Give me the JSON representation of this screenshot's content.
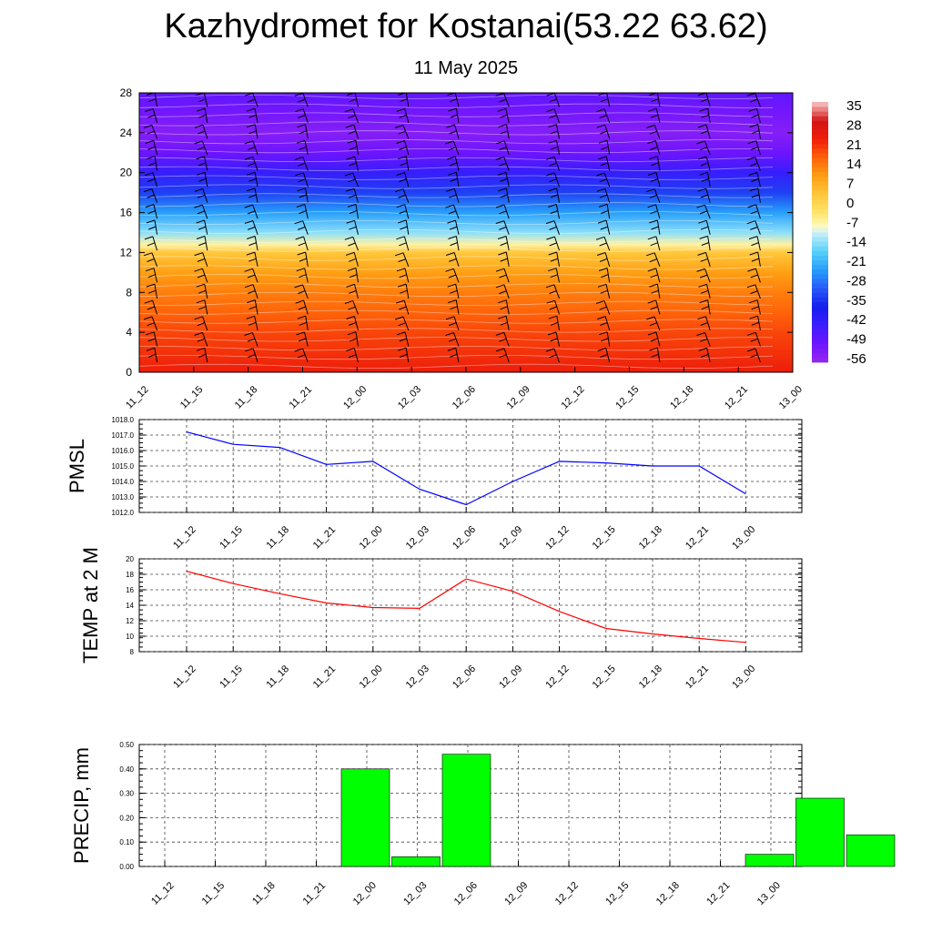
{
  "title": "Kazhydromet for Kostanai(53.22 63.62)",
  "subtitle": "11 May 2025",
  "time_labels": [
    "11_12",
    "11_15",
    "11_18",
    "11_21",
    "12_00",
    "12_03",
    "12_06",
    "12_09",
    "12_12",
    "12_15",
    "12_18",
    "12_21",
    "13_00"
  ],
  "chart_data": [
    {
      "type": "heatmap",
      "description_role": "temperature-height cross section with wind barbs",
      "x": [
        "11_12",
        "11_15",
        "11_18",
        "11_21",
        "12_00",
        "12_03",
        "12_06",
        "12_09",
        "12_12",
        "12_15",
        "12_18",
        "12_21",
        "13_00"
      ],
      "ylim": [
        0,
        28
      ],
      "y_ticks": [
        "0",
        "4",
        "8",
        "12",
        "16",
        "20",
        "24",
        "28"
      ],
      "colorbar_labels": [
        "35",
        "28",
        "21",
        "14",
        "7",
        "0",
        "-7",
        "-14",
        "-21",
        "-28",
        "-35",
        "-42",
        "-49",
        "-56"
      ],
      "colorbar_range": [
        -63,
        35
      ],
      "profile_height": [
        0,
        2,
        4,
        6,
        8,
        10,
        12,
        12.8,
        14,
        16,
        18,
        20,
        22,
        24,
        26,
        28
      ],
      "profile_temp": [
        22,
        19,
        17,
        14,
        11,
        7,
        0,
        -10,
        -18,
        -28,
        -38,
        -48,
        -56,
        -60,
        -57,
        -54
      ]
    },
    {
      "type": "line",
      "ylabel": "PMSL",
      "categories": [
        "11_12",
        "11_15",
        "11_18",
        "11_21",
        "12_00",
        "12_03",
        "12_06",
        "12_09",
        "12_12",
        "12_15",
        "12_18",
        "12_21",
        "13_00"
      ],
      "values": [
        1017.2,
        1016.4,
        1016.2,
        1015.1,
        1015.3,
        1013.5,
        1012.5,
        1014.0,
        1015.3,
        1015.2,
        1015.0,
        1015.0,
        1013.2
      ],
      "ylim": [
        1012.0,
        1018.0
      ],
      "y_ticks": [
        "1012.0",
        "1013.0",
        "1014.0",
        "1015.0",
        "1016.0",
        "1017.0",
        "1018.0"
      ],
      "color": "#0000ff"
    },
    {
      "type": "line",
      "ylabel": "TEMP at 2 M",
      "categories": [
        "11_12",
        "11_15",
        "11_18",
        "11_21",
        "12_00",
        "12_03",
        "12_06",
        "12_09",
        "12_12",
        "12_15",
        "12_18",
        "12_21",
        "13_00"
      ],
      "values": [
        18.4,
        16.8,
        15.5,
        14.3,
        13.7,
        13.6,
        17.4,
        15.8,
        13.2,
        11.0,
        10.3,
        9.7,
        9.2
      ],
      "ylim": [
        8,
        20
      ],
      "y_ticks": [
        "8",
        "10",
        "12",
        "14",
        "16",
        "18",
        "20"
      ],
      "color": "#ff0000"
    },
    {
      "type": "bar",
      "ylabel": "PRECIP, mm",
      "categories": [
        "11_12",
        "11_15",
        "11_18",
        "11_21",
        "12_00",
        "12_03",
        "12_06",
        "12_09",
        "12_12",
        "12_15",
        "12_18",
        "12_21",
        "13_00"
      ],
      "values": [
        0,
        0,
        0.4,
        0.04,
        0.46,
        0,
        0,
        0,
        0,
        0,
        0.05,
        0.28,
        0.13
      ],
      "ylim": [
        0,
        0.5
      ],
      "y_ticks": [
        "0.00",
        "0.10",
        "0.20",
        "0.30",
        "0.40",
        "0.50"
      ],
      "color": "#00ff00"
    }
  ]
}
